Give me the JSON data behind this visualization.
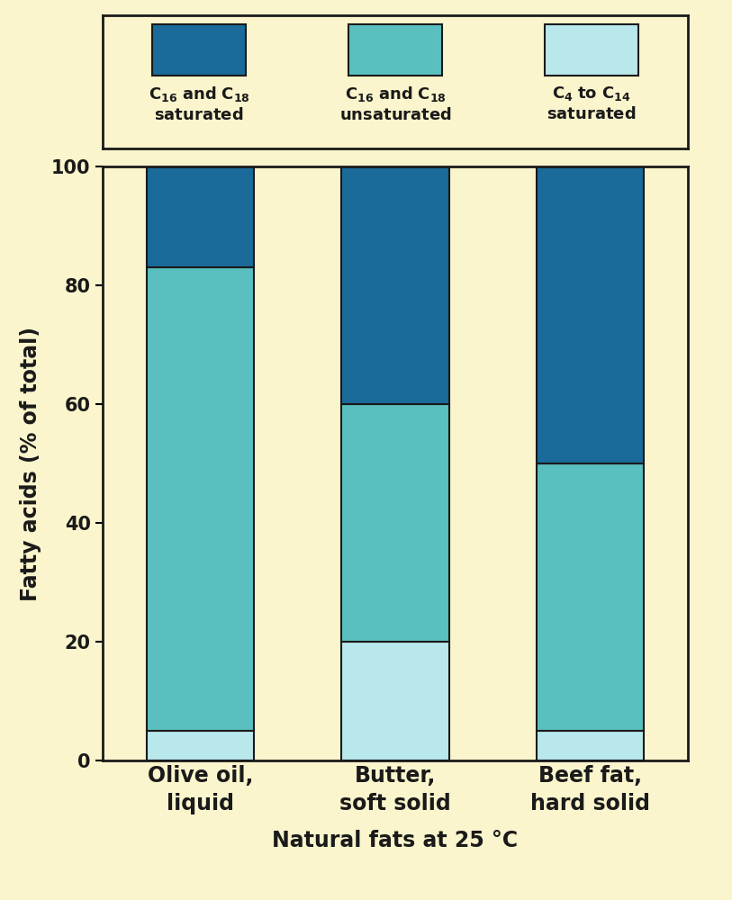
{
  "categories": [
    "Olive oil,\nliquid",
    "Butter,\nsoft solid",
    "Beef fat,\nhard solid"
  ],
  "segments": {
    "c4_c14_sat": [
      5,
      20,
      5
    ],
    "c16_c18_unsat": [
      78,
      40,
      45
    ],
    "c16_c18_sat": [
      17,
      40,
      50
    ]
  },
  "colors": {
    "c4_c14_sat": "#b8e8ec",
    "c16_c18_unsat": "#5abfbf",
    "c16_c18_sat": "#1a6b9a"
  },
  "legend_labels": {
    "c16_c18_sat": "$\\mathbf{C_{16}}$ $\\mathbf{and}$ $\\mathbf{C_{18}}$\n$\\mathbf{saturated}$",
    "c16_c18_unsat": "$\\mathbf{C_{16}}$ $\\mathbf{and}$ $\\mathbf{C_{18}}$\n$\\mathbf{unsaturated}$",
    "c4_c14_sat": "$\\mathbf{C_{4}}$ $\\mathbf{to}$ $\\mathbf{C_{14}}$\n$\\mathbf{saturated}$"
  },
  "ylabel": "Fatty acids (% of total)",
  "xlabel": "Natural fats at 25 °C",
  "ylim": [
    0,
    100
  ],
  "yticks": [
    0,
    20,
    40,
    60,
    80,
    100
  ],
  "background_color": "#faf5cc",
  "edge_color": "#1a1a1a",
  "bar_width": 0.55,
  "axis_fontsize": 17,
  "tick_fontsize": 15,
  "legend_fontsize": 13
}
